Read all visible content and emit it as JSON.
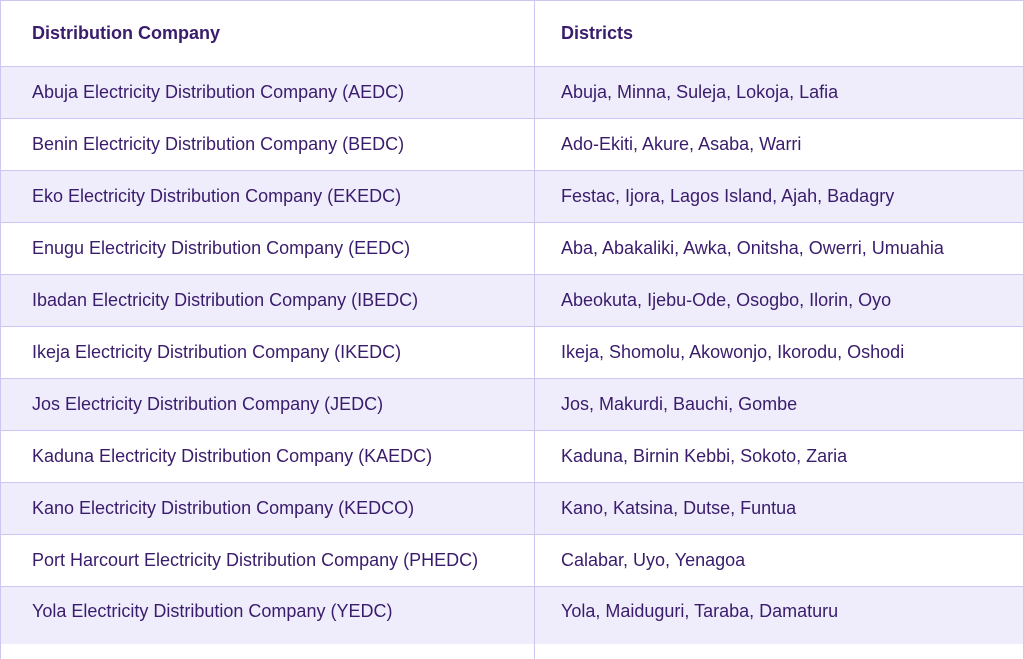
{
  "table": {
    "header": [
      "Distribution Company",
      "Districts"
    ],
    "rows": [
      [
        "Abuja Electricity Distribution Company (AEDC)",
        "Abuja, Minna, Suleja, Lokoja, Lafia"
      ],
      [
        "Benin Electricity Distribution Company (BEDC)",
        "Ado-Ekiti, Akure, Asaba, Warri"
      ],
      [
        "Eko Electricity Distribution Company (EKEDC)",
        "Festac, Ijora, Lagos Island, Ajah, Badagry"
      ],
      [
        "Enugu Electricity Distribution Company (EEDC)",
        "Aba, Abakaliki, Awka, Onitsha, Owerri, Umuahia"
      ],
      [
        "Ibadan Electricity Distribution Company (IBEDC)",
        "Abeokuta, Ijebu-Ode, Osogbo, Ilorin, Oyo"
      ],
      [
        "Ikeja Electricity Distribution Company (IKEDC)",
        "Ikeja, Shomolu, Akowonjo, Ikorodu, Oshodi"
      ],
      [
        "Jos Electricity Distribution Company (JEDC)",
        "Jos, Makurdi, Bauchi, Gombe"
      ],
      [
        "Kaduna Electricity Distribution Company (KAEDC)",
        "Kaduna, Birnin Kebbi, Sokoto, Zaria"
      ],
      [
        "Kano Electricity Distribution Company (KEDCO)",
        "Kano, Katsina, Dutse, Funtua"
      ],
      [
        "Port Harcourt Electricity Distribution Company (PHEDC)",
        "Calabar, Uyo, Yenagoa"
      ],
      [
        "Yola Electricity Distribution Company (YEDC)",
        "Yola, Maiduguri, Taraba, Damaturu"
      ]
    ]
  }
}
